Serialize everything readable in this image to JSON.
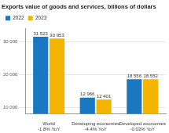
{
  "chart_data": {
    "type": "bar",
    "title": "Exports value of goods and services, billions of dollars",
    "categories": [
      [
        "World",
        "-1.8% YoY"
      ],
      [
        "Developing economies",
        "-4.4% YoY"
      ],
      [
        "Developed economies",
        "-0.03% YoY"
      ]
    ],
    "series": [
      {
        "name": "2022",
        "color": "#1a78c2",
        "values": [
          31523,
          12966,
          18556
        ],
        "value_labels": [
          "31 523",
          "12 966",
          "18 556"
        ]
      },
      {
        "name": "2023",
        "color": "#f5b400",
        "values": [
          30953,
          12401,
          18552
        ],
        "value_labels": [
          "30 953",
          "12 401",
          "18 552"
        ]
      }
    ],
    "ylim": [
      8000,
      34000
    ],
    "yticks": [
      {
        "value": 10000,
        "label": "10 000"
      },
      {
        "value": 20000,
        "label": "20 000"
      },
      {
        "value": 30000,
        "label": "30 000"
      }
    ],
    "grid": true,
    "legend": "top-left",
    "data_labels": true
  }
}
